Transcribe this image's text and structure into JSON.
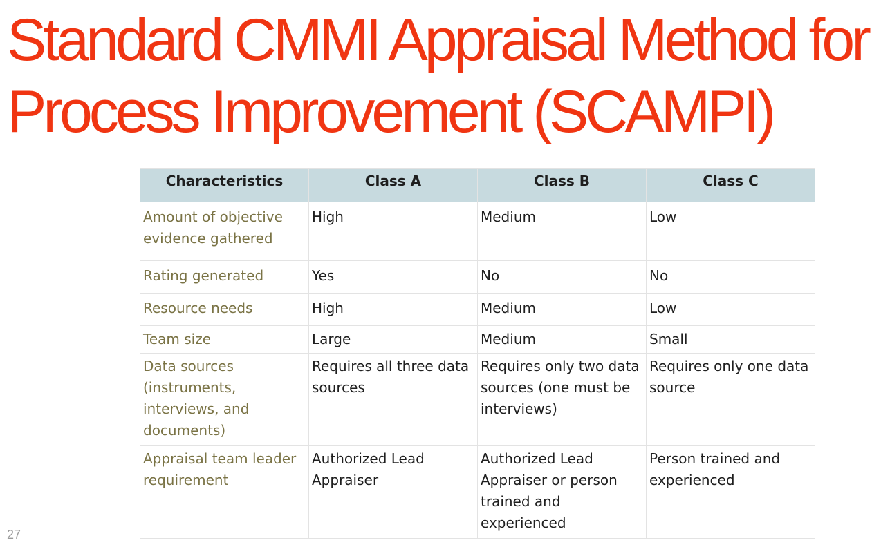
{
  "title": {
    "line1": "Standard CMMI Appraisal Method for",
    "line2": "Process Improvement (SCAMPI)"
  },
  "table": {
    "headers": [
      "Characteristics",
      "Class A",
      "Class B",
      "Class C"
    ],
    "rows": [
      [
        "Amount of objective evidence gathered",
        "High",
        "Medium",
        "Low"
      ],
      [
        "Rating generated",
        "Yes",
        "No",
        "No"
      ],
      [
        "Resource needs",
        "High",
        "Medium",
        "Low"
      ],
      [
        "Team size",
        "Large",
        "Medium",
        "Small"
      ],
      [
        "Data sources (instruments, interviews, and documents)",
        "Requires all three data sources",
        "Requires only two data sources (one must be interviews)",
        "Requires only one data source"
      ],
      [
        "Appraisal team leader requirement",
        "Authorized Lead Appraiser",
        "Authorized Lead Appraiser or person trained and experienced",
        "Person trained and experienced"
      ]
    ]
  },
  "page_number": "27",
  "colors": {
    "title": "#f03512",
    "header_fill": "#c7dadf",
    "characteristic_text": "#7a7345"
  }
}
